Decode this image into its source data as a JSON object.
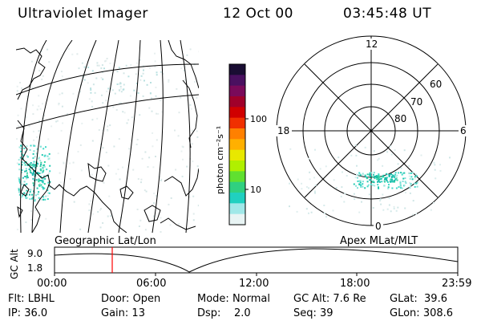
{
  "header": {
    "instrument": "Ultraviolet Imager",
    "date": "12 Oct 00",
    "time": "03:45:48 UT"
  },
  "colorbar": {
    "unit_label": "photon cm⁻²s⁻¹",
    "ticks": [
      "100",
      "10"
    ],
    "colors": [
      "#1a0d33",
      "#4a1060",
      "#7a0a5a",
      "#a0002a",
      "#d00000",
      "#f03000",
      "#ff8000",
      "#ffb000",
      "#e8e800",
      "#b0f000",
      "#60e030",
      "#30d080",
      "#20d0c0",
      "#a0e8e8",
      "#e8f4f4"
    ]
  },
  "left_map": {
    "caption": "Geographic Lat/Lon"
  },
  "right_map": {
    "caption": "Apex MLat/MLT",
    "mlt_labels": {
      "top": "12",
      "left": "18",
      "right": "6",
      "bottom": "0"
    },
    "lat_labels": [
      "60",
      "70",
      "80"
    ]
  },
  "altitude_plot": {
    "ylabel": "GC Alt",
    "yticks": [
      "9.0",
      "1.8"
    ],
    "xticks": [
      "00:00",
      "06:00",
      "12:00",
      "18:00",
      "23:59"
    ],
    "marker_color": "#ff0000"
  },
  "status": {
    "row1": [
      {
        "label": "Flt:",
        "value": "LBHL"
      },
      {
        "label": "Door:",
        "value": "Open"
      },
      {
        "label": "Mode:",
        "value": "Normal"
      },
      {
        "label": "GC Alt:",
        "value": "7.6 Re"
      },
      {
        "label": "GLat:",
        "value": "39.6"
      }
    ],
    "row2": [
      {
        "label": "IP:",
        "value": "36.0"
      },
      {
        "label": "Gain:",
        "value": "13"
      },
      {
        "label": "Dsp:",
        "value": "2.0"
      },
      {
        "label": "Seq:",
        "value": "39"
      },
      {
        "label": "GLon:",
        "value": "308.6"
      }
    ]
  }
}
